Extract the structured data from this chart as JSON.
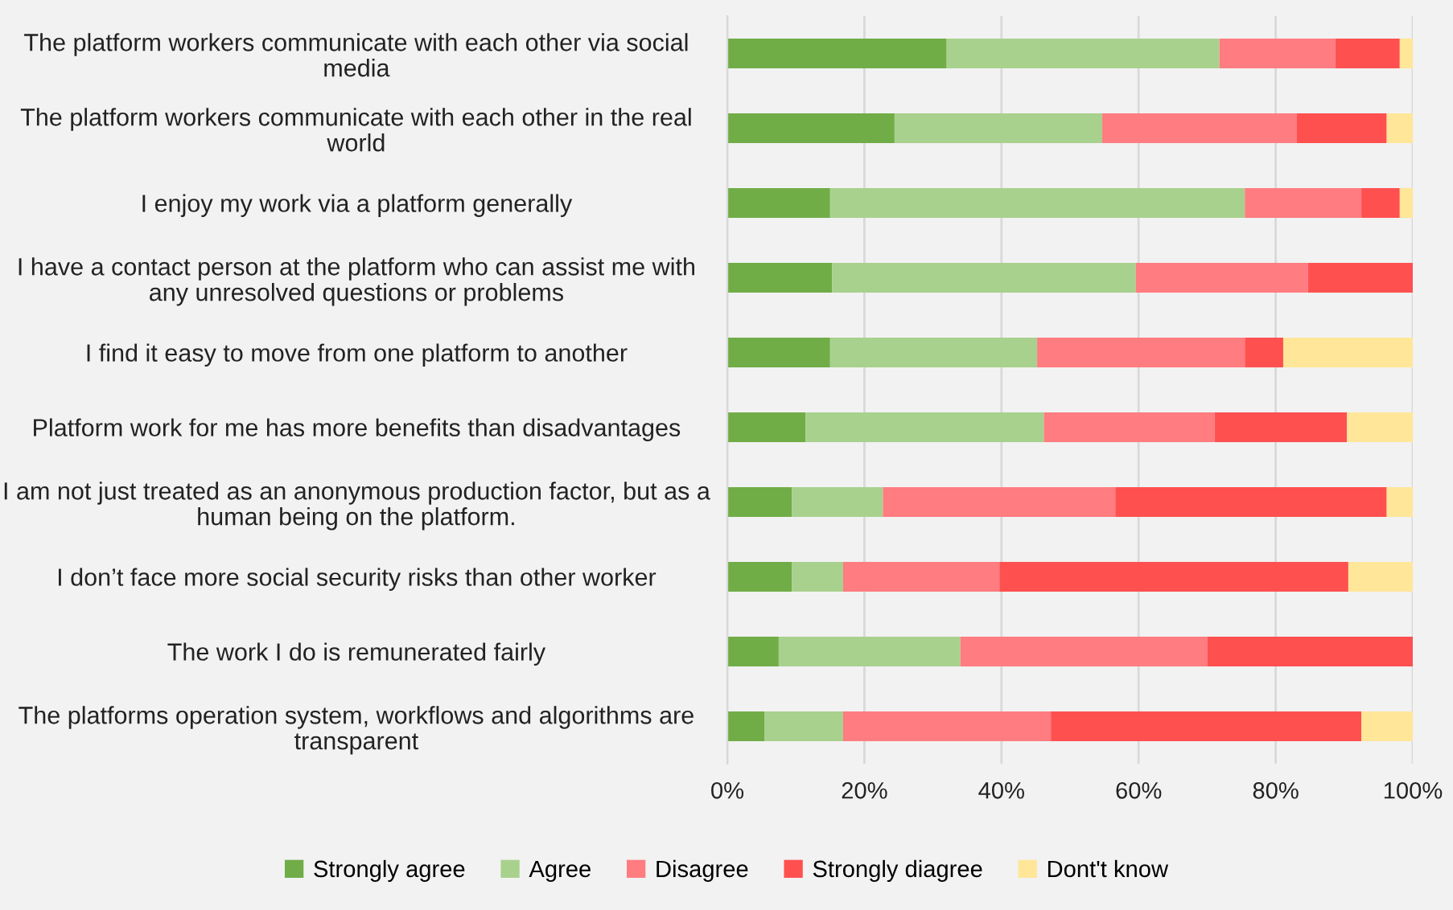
{
  "chart_data": {
    "type": "bar",
    "orientation": "horizontal",
    "stacked": true,
    "categories": [
      "The platform workers communicate with each other via social\nmedia",
      "The platform workers communicate with each other in the real\nworld",
      "I enjoy my work via a platform generally",
      "I have a contact person at the platform who can assist me with\nany unresolved questions or problems",
      "I find it easy to move from one platform to another",
      "Platform work for me has more benefits than disadvantages",
      "I am not just treated as an anonymous production factor, but as a\nhuman being on the platform.",
      "I don’t face more social security risks than other worker",
      "The work I do is remunerated fairly",
      "The platforms operation system, workflows and algorithms are\ntransparent"
    ],
    "series": [
      {
        "name": "Strongly agree",
        "color": "#70ad47",
        "values": [
          32.0,
          24.4,
          15.0,
          15.3,
          15.0,
          11.4,
          9.4,
          9.4,
          7.5,
          5.4
        ]
      },
      {
        "name": "Agree",
        "color": "#a9d18e",
        "values": [
          39.8,
          30.3,
          60.5,
          44.3,
          30.2,
          34.8,
          13.3,
          7.5,
          26.5,
          11.5
        ]
      },
      {
        "name": "Disagree",
        "color": "#ff7c80",
        "values": [
          16.9,
          28.4,
          17.0,
          25.1,
          30.3,
          24.9,
          33.9,
          22.8,
          36.0,
          30.3
        ]
      },
      {
        "name": "Strongly diagree",
        "color": "#ff5050",
        "values": [
          9.4,
          13.1,
          5.6,
          15.3,
          5.6,
          19.3,
          39.6,
          50.9,
          30.0,
          45.3
        ]
      },
      {
        "name": "Dont't know",
        "color": "#ffe699",
        "values": [
          1.9,
          3.8,
          1.9,
          0,
          18.9,
          9.6,
          3.8,
          9.4,
          0,
          7.5
        ]
      }
    ],
    "xlim": [
      0,
      100
    ],
    "xticks": [
      {
        "value": 0,
        "label": "0%"
      },
      {
        "value": 20,
        "label": "20%"
      },
      {
        "value": 40,
        "label": "40%"
      },
      {
        "value": 60,
        "label": "60%"
      },
      {
        "value": 80,
        "label": "80%"
      },
      {
        "value": 100,
        "label": "100%"
      }
    ],
    "grid": "x",
    "legend": "bottom"
  }
}
